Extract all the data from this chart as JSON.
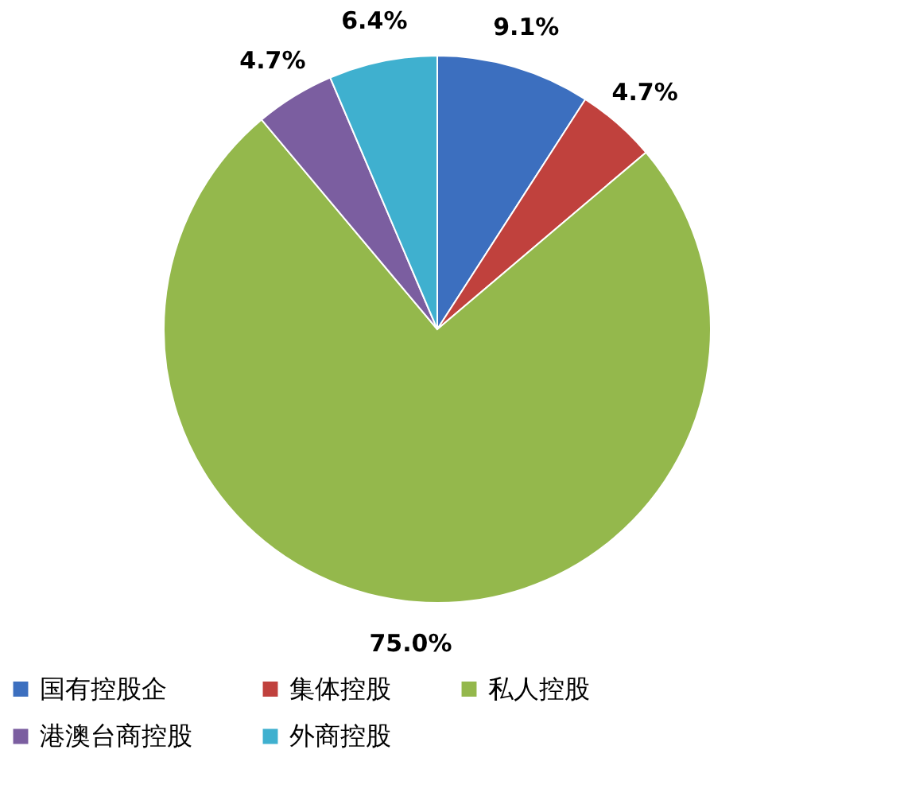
{
  "chart_data": {
    "type": "pie",
    "categories": [
      "国有控股企",
      "集体控股",
      "私人控股",
      "港澳台商控股",
      "外商控股"
    ],
    "values": [
      9.1,
      4.7,
      75.0,
      4.7,
      6.4
    ],
    "colors": [
      "#3c6fbf",
      "#c0413d",
      "#94b84c",
      "#7b5ea0",
      "#3fb0cf"
    ],
    "value_labels": [
      "9.1%",
      "4.7%",
      "75.0%",
      "4.7%",
      "6.4%"
    ],
    "legend": "bottom"
  }
}
